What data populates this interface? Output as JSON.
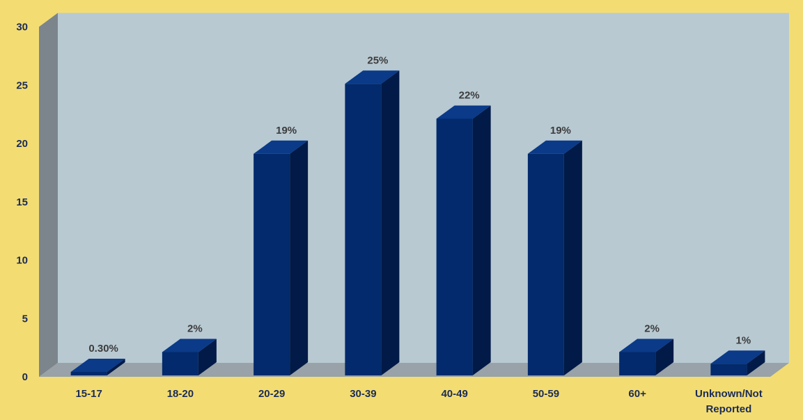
{
  "chart_data": {
    "type": "bar",
    "title": "",
    "xlabel": "",
    "ylabel": "",
    "categories": [
      "15-17",
      "18-20",
      "20-29",
      "30-39",
      "40-49",
      "50-59",
      "60+",
      "Unknown/Not Reported"
    ],
    "values": [
      0.3,
      2,
      19,
      25,
      22,
      19,
      2,
      1
    ],
    "data_labels": [
      "0.30%",
      "2%",
      "19%",
      "25%",
      "22%",
      "19%",
      "2%",
      "1%"
    ],
    "ylim": [
      0,
      30
    ],
    "yticks": [
      0,
      5,
      10,
      15,
      20,
      25,
      30
    ],
    "grid": false,
    "style": "3d-bar",
    "colors": {
      "background": "#f3dd72",
      "wall": "#b8c9d2",
      "side_wall": "#7c858c",
      "floor": "#98a2a8",
      "bar_front": "#022a6c",
      "bar_side": "#011a47",
      "bar_top": "#0a3a88",
      "tick_text": "#1b2b57",
      "data_label_text": "#3c3c3c"
    }
  }
}
